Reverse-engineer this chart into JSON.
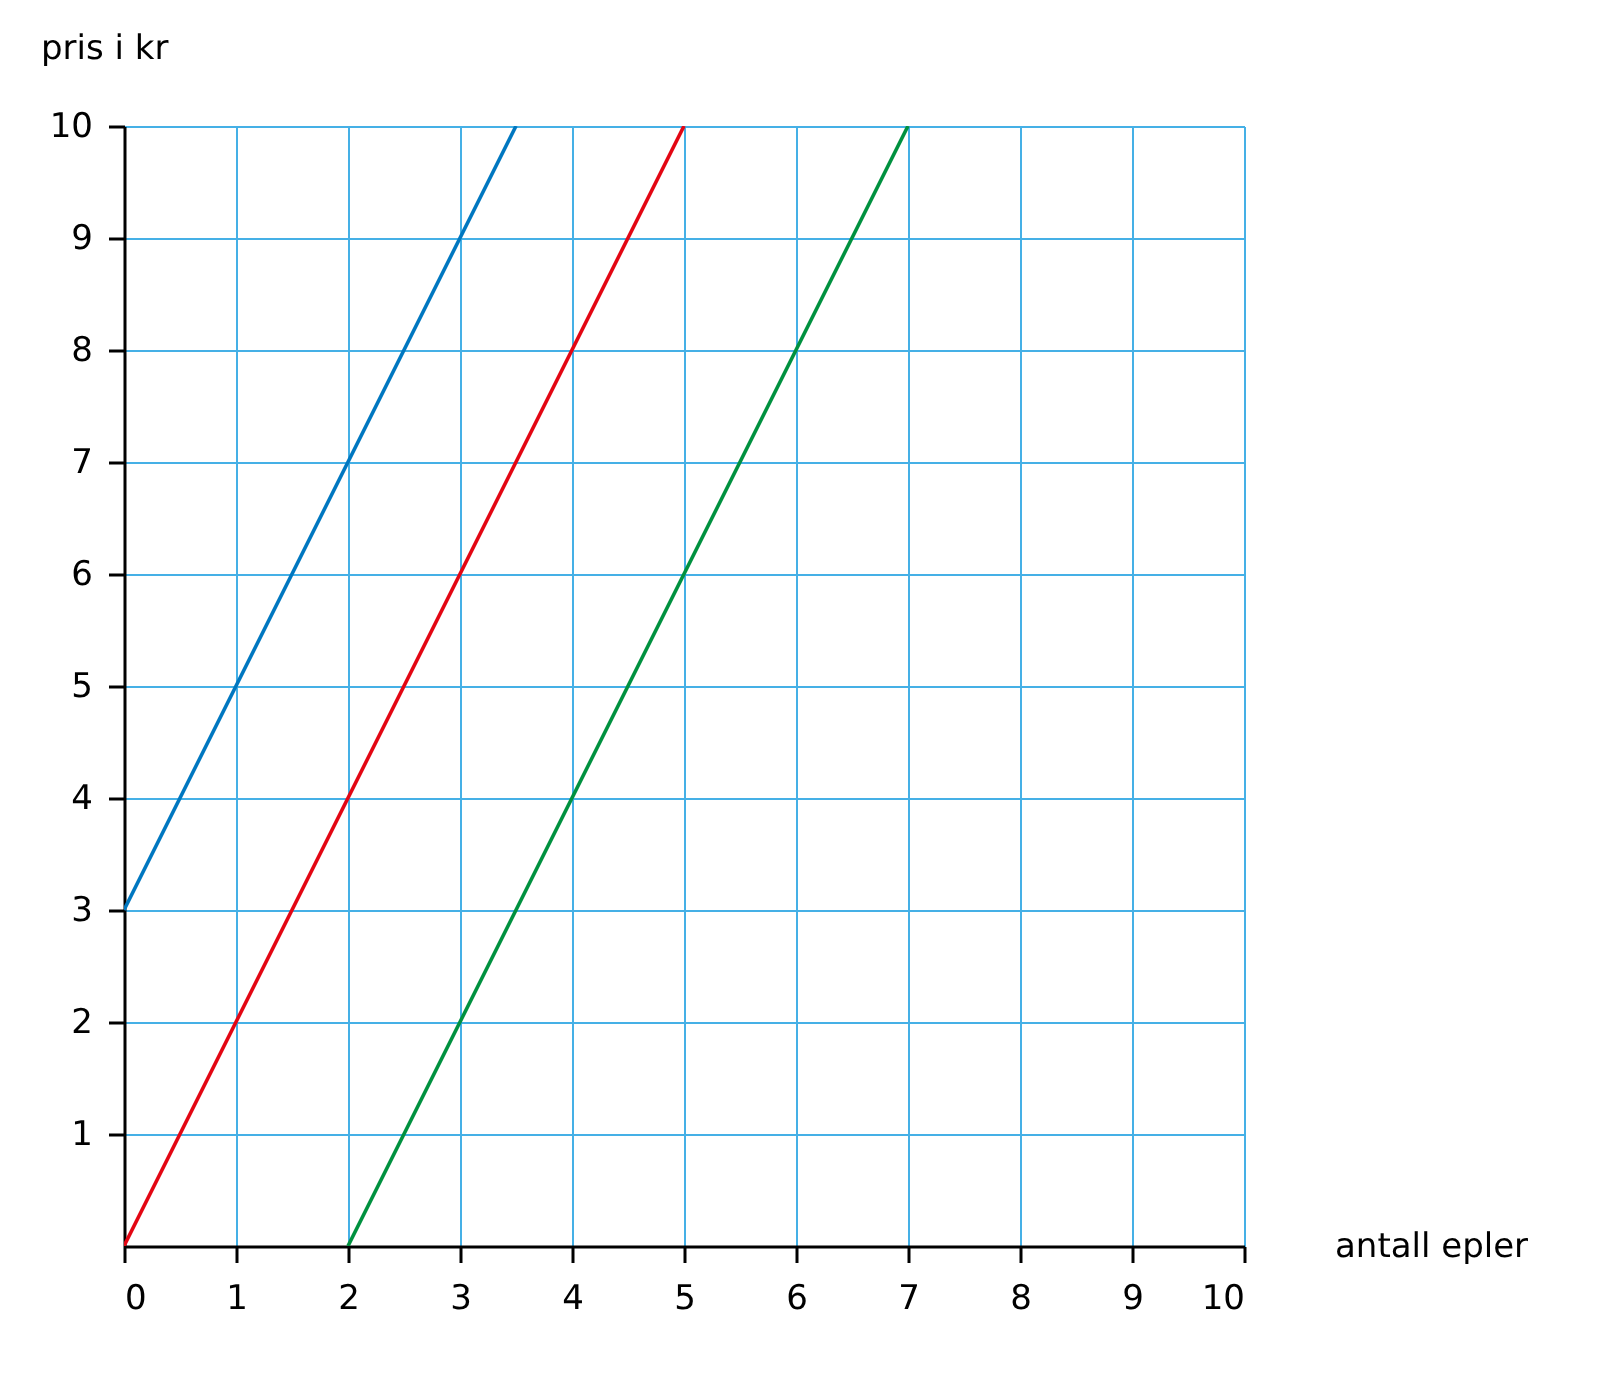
{
  "chart_data": {
    "type": "line",
    "xlabel": "antall epler",
    "ylabel": "pris i kr",
    "xlim": [
      0,
      10
    ],
    "ylim": [
      0,
      10
    ],
    "xticks": [
      0,
      1,
      2,
      3,
      4,
      5,
      6,
      7,
      8,
      9,
      10
    ],
    "yticks": [
      1,
      2,
      3,
      4,
      5,
      6,
      7,
      8,
      9,
      10
    ],
    "grid": true,
    "marker": "none",
    "line_style": "solid",
    "series": [
      {
        "color": "#0077c0",
        "x": [
          0,
          3.5
        ],
        "values": [
          3,
          10
        ]
      },
      {
        "color": "#e30613",
        "x": [
          0,
          5
        ],
        "values": [
          0,
          10
        ]
      },
      {
        "color": "#00913f",
        "x": [
          2,
          7
        ],
        "values": [
          0,
          10
        ]
      }
    ]
  }
}
